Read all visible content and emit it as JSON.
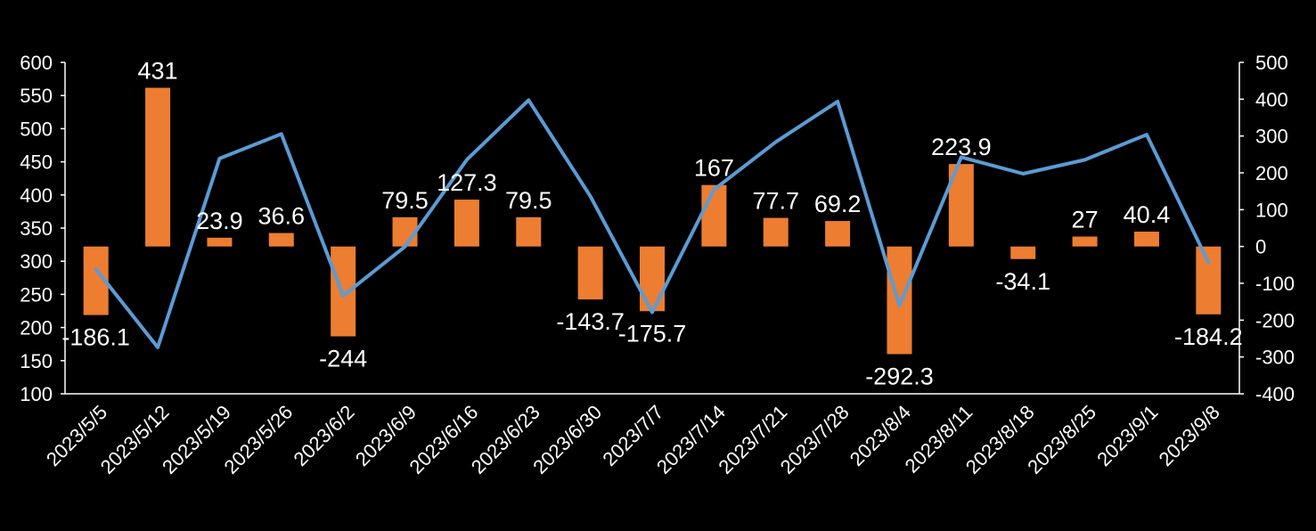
{
  "chart_data": {
    "type": "bar",
    "categories": [
      "2023/5/5",
      "2023/5/12",
      "2023/5/19",
      "2023/5/26",
      "2023/6/2",
      "2023/6/9",
      "2023/6/16",
      "2023/6/23",
      "2023/6/30",
      "2023/7/7",
      "2023/7/14",
      "2023/7/21",
      "2023/7/28",
      "2023/8/4",
      "2023/8/11",
      "2023/8/18",
      "2023/8/25",
      "2023/9/1",
      "2023/9/8"
    ],
    "series": [
      {
        "type": "bar",
        "axis": "right",
        "color": "#ED7D31",
        "values": [
          -186.1,
          431,
          23.9,
          36.6,
          -244,
          79.5,
          127.3,
          79.5,
          -143.7,
          -175.7,
          167,
          77.7,
          69.2,
          -292.3,
          223.9,
          -34.1,
          27,
          40.4,
          -184.2
        ],
        "labels": [
          "-186.1",
          "431",
          "23.9",
          "36.6",
          "-244",
          "79.5",
          "127.3",
          "79.5",
          "-143.7",
          "-175.7",
          "167",
          "77.7",
          "69.2",
          "-292.3",
          "223.9",
          "-34.1",
          "27",
          "40.4",
          "-184.2"
        ]
      },
      {
        "type": "line",
        "axis": "left",
        "color": "#5B9BD5",
        "values": [
          288,
          170,
          455,
          492,
          248,
          322,
          453,
          543,
          398,
          223,
          408,
          480,
          541,
          233,
          457,
          432,
          453,
          491,
          298
        ]
      }
    ],
    "left_axis": {
      "min": 100,
      "max": 600,
      "ticks": [
        "100",
        "150",
        "200",
        "250",
        "300",
        "350",
        "400",
        "450",
        "500",
        "550",
        "600"
      ]
    },
    "right_axis": {
      "min": -400,
      "max": 500,
      "ticks": [
        "-400",
        "-300",
        "-200",
        "-100",
        "0",
        "100",
        "200",
        "300",
        "400",
        "500"
      ]
    },
    "grid": false,
    "legend": "none",
    "background": "#000000"
  }
}
